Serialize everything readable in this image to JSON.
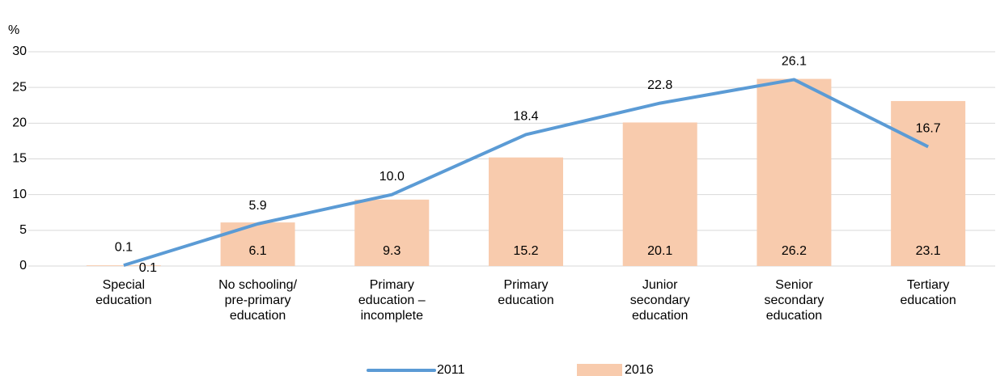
{
  "chart_data": {
    "type": "combo",
    "y_label": "%",
    "categories": [
      "Special education",
      "No schooling/ pre-primary education",
      "Primary education – incomplete",
      "Primary education",
      "Junior secondary education",
      "Senior secondary education",
      "Tertiary education"
    ],
    "series": [
      {
        "name": "2011",
        "type": "line",
        "color": "#5b9bd5",
        "values": [
          0.1,
          5.9,
          10,
          18.4,
          22.8,
          26.1,
          16.7
        ],
        "value_labels": [
          "0.1",
          "5.9",
          "10.0",
          "18.4",
          "22.8",
          "26.1",
          "16.7"
        ]
      },
      {
        "name": "2016",
        "type": "bar",
        "color": "#f8cbad",
        "values": [
          0.1,
          6.1,
          9.3,
          15.2,
          20.1,
          26.2,
          23.1
        ]
      }
    ],
    "ylim": [
      0,
      30
    ],
    "yticks": [
      0,
      5,
      10,
      15,
      20,
      25,
      30
    ],
    "grid": true
  }
}
